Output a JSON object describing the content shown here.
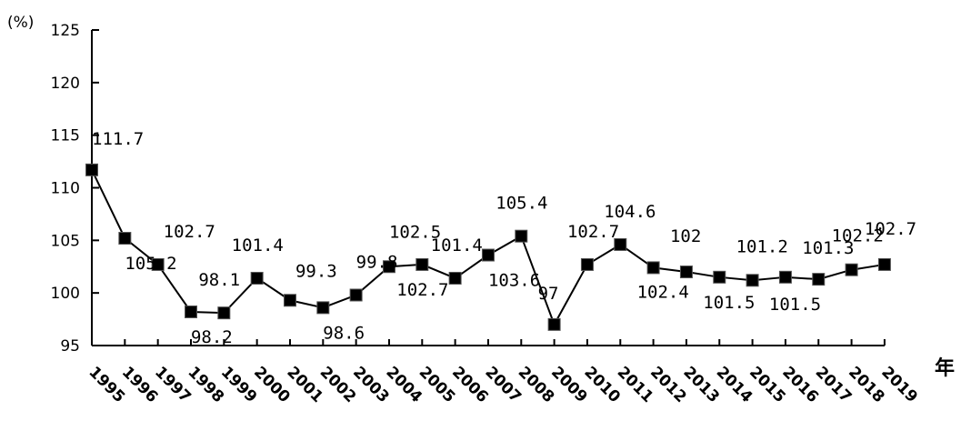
{
  "chart_data": {
    "type": "line",
    "title": "",
    "ylabel": "(%)",
    "xlabel": "年",
    "ylim": [
      95,
      125
    ],
    "yticks": [
      95,
      100,
      105,
      110,
      115,
      120,
      125
    ],
    "categories": [
      "1995",
      "1996",
      "1997",
      "1998",
      "1999",
      "2000",
      "2001",
      "2002",
      "2003",
      "2004",
      "2005",
      "2006",
      "2007",
      "2008",
      "2009",
      "2010",
      "2011",
      "2012",
      "2013",
      "2014",
      "2015",
      "2016",
      "2017",
      "2018",
      "2019"
    ],
    "series": [
      {
        "values": [
          111.7,
          105.2,
          102.7,
          98.2,
          98.1,
          101.4,
          99.3,
          98.6,
          99.8,
          102.5,
          102.7,
          101.4,
          103.6,
          105.4,
          97,
          102.7,
          104.6,
          102.4,
          102,
          101.5,
          101.2,
          101.5,
          101.3,
          102.2,
          102.7
        ],
        "labels": [
          "111.7",
          "105.2",
          "102.7",
          "98.2",
          "98.1",
          "101.4",
          "99.3",
          "98.6",
          "99.8",
          "102.5",
          "102.7",
          "101.4",
          "103.6",
          "105.4",
          "97",
          "102.7",
          "104.6",
          "102.4",
          "102",
          "101.5",
          "101.2",
          "101.5",
          "101.3",
          "102.2",
          "102.7"
        ],
        "color": "#000000"
      }
    ],
    "grid": false,
    "legend": "none"
  }
}
